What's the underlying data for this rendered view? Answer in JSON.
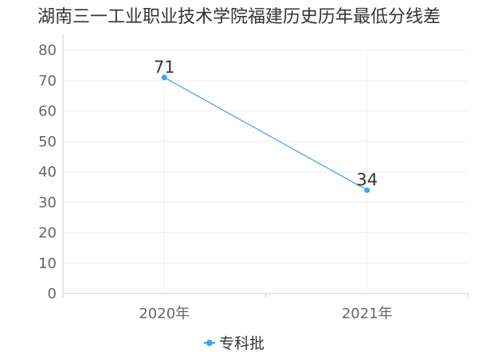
{
  "chart_data": {
    "type": "line",
    "title": "湖南三一工业职业技术学院福建历史历年最低分线差",
    "categories": [
      "2020年",
      "2021年"
    ],
    "series": [
      {
        "name": "专科批",
        "values": [
          71,
          34
        ],
        "color": "#3fa0f7"
      }
    ],
    "ylim": [
      0,
      80
    ],
    "yticks": [
      0,
      10,
      20,
      30,
      40,
      50,
      60,
      70,
      80
    ],
    "xlabel": "",
    "ylabel": "",
    "grid": true,
    "grid_color": "#f0f0f0",
    "legend": "bottom",
    "data_labels": true
  }
}
